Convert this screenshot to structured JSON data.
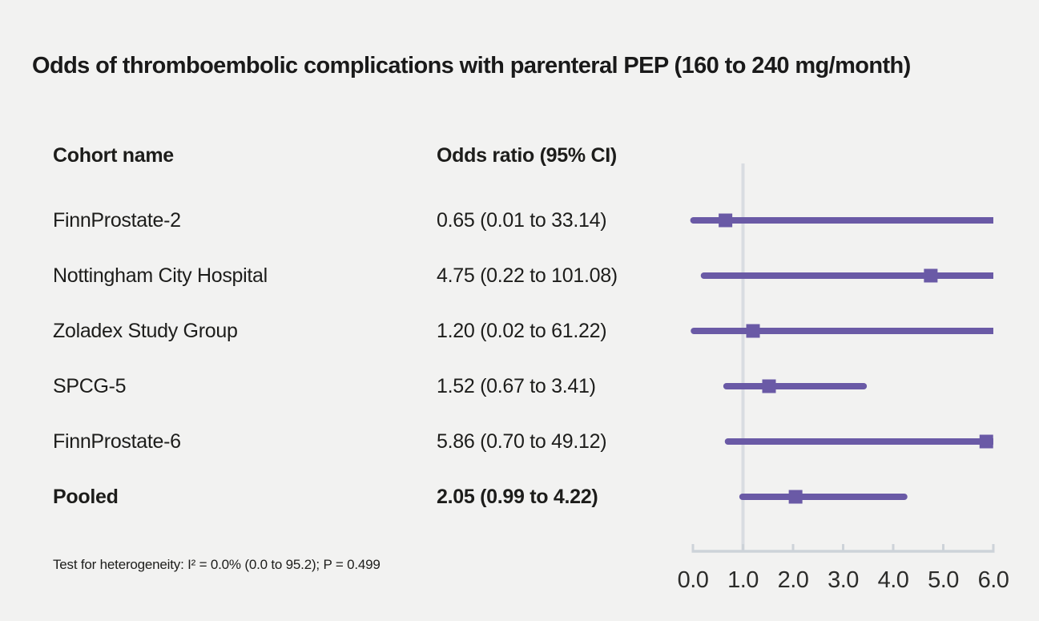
{
  "chart_data": {
    "type": "forest",
    "title": "Odds of thromboembolic complications with parenteral PEP (160 to 240 mg/month)",
    "columns": [
      "Cohort name",
      "Odds ratio (95% CI)"
    ],
    "rows": [
      {
        "name": "FinnProstate-2",
        "or_label": "0.65 (0.01 to 33.14)",
        "or": 0.65,
        "ci_low": 0.01,
        "ci_high": 33.14,
        "bold": false
      },
      {
        "name": "Nottingham City Hospital",
        "or_label": "4.75 (0.22 to 101.08)",
        "or": 4.75,
        "ci_low": 0.22,
        "ci_high": 101.08,
        "bold": false
      },
      {
        "name": "Zoladex Study Group",
        "or_label": "1.20 (0.02 to 61.22)",
        "or": 1.2,
        "ci_low": 0.02,
        "ci_high": 61.22,
        "bold": false
      },
      {
        "name": "SPCG-5",
        "or_label": "1.52 (0.67 to 3.41)",
        "or": 1.52,
        "ci_low": 0.67,
        "ci_high": 3.41,
        "bold": false
      },
      {
        "name": "FinnProstate-6",
        "or_label": "5.86 (0.70 to 49.12)",
        "or": 5.86,
        "ci_low": 0.7,
        "ci_high": 49.12,
        "bold": false
      },
      {
        "name": "Pooled",
        "or_label": "2.05 (0.99 to 4.22)",
        "or": 2.05,
        "ci_low": 0.99,
        "ci_high": 4.22,
        "bold": true
      }
    ],
    "axis": {
      "min": 0,
      "max": 6,
      "tick_labels": [
        "0.0",
        "1.0",
        "2.0",
        "3.0",
        "4.0",
        "5.0",
        "6.0"
      ],
      "reference_line": 1.0,
      "grid": false
    },
    "footnote": "Test for heterogeneity: I² = 0.0% (0.0 to 95.2); P = 0.499",
    "colors": {
      "marker": "#6a5aa6",
      "reference_line": "#d9dce1",
      "axis": "#cdd3d9",
      "background": "#f2f2f1",
      "text": "#1d1d1b"
    },
    "legend": null
  }
}
